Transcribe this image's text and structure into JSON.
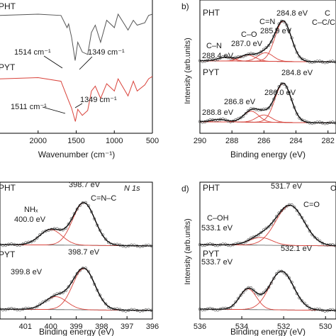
{
  "chart_data": [
    {
      "panel": "a",
      "type": "line",
      "panel_label": "",
      "xlabel": "Wavenumber (cm⁻¹)",
      "xlim": [
        2500,
        500
      ],
      "x_ticks": [
        "2000",
        "1500",
        "1000",
        "500"
      ],
      "series": [
        {
          "name": "PHT",
          "color": "#555555",
          "x": [
            2500,
            2000,
            1700,
            1620,
            1600,
            1560,
            1514,
            1480,
            1420,
            1349,
            1300,
            1250,
            1180,
            1100,
            1000,
            950,
            820,
            750,
            700,
            600,
            550,
            500
          ],
          "y": [
            0.92,
            0.93,
            0.92,
            0.82,
            0.85,
            0.74,
            0.55,
            0.7,
            0.62,
            0.6,
            0.78,
            0.84,
            0.7,
            0.88,
            0.82,
            0.93,
            0.8,
            0.88,
            0.84,
            0.86,
            0.92,
            0.93
          ]
        },
        {
          "name": "PYT",
          "color": "#d9423a",
          "x": [
            2500,
            2000,
            1700,
            1650,
            1600,
            1560,
            1511,
            1480,
            1420,
            1349,
            1300,
            1250,
            1180,
            1100,
            1000,
            950,
            820,
            750,
            700,
            600,
            550,
            500
          ],
          "y": [
            0.4,
            0.41,
            0.38,
            0.3,
            0.22,
            0.16,
            0.05,
            0.15,
            0.1,
            0.14,
            0.3,
            0.34,
            0.24,
            0.36,
            0.3,
            0.4,
            0.26,
            0.38,
            0.3,
            0.35,
            0.4,
            0.42
          ]
        }
      ],
      "annotations": [
        "1514 cm⁻¹",
        "1349 cm⁻¹",
        "1511 cm⁻¹",
        "1349 cm⁻¹"
      ],
      "series_labels": [
        "PHT",
        "PYT"
      ]
    },
    {
      "panel": "b",
      "type": "line",
      "panel_label": "b)",
      "xlabel": "Binding energy (eV)",
      "ylabel": "Intensity (arb.units)",
      "xlim": [
        290,
        281.5
      ],
      "x_ticks": [
        "290",
        "288",
        "286",
        "284",
        "282"
      ],
      "spectra": [
        {
          "name": "PHT",
          "offset": 0.55,
          "peaks": [
            {
              "center": 284.8,
              "height": 0.33,
              "width": 0.75
            },
            {
              "center": 285.9,
              "height": 0.07,
              "width": 0.7
            },
            {
              "center": 287.0,
              "height": 0.05,
              "width": 0.7
            },
            {
              "center": 288.4,
              "height": 0.03,
              "width": 0.7
            }
          ]
        },
        {
          "name": "PYT",
          "offset": 0.05,
          "peaks": [
            {
              "center": 284.8,
              "height": 0.32,
              "width": 0.75
            },
            {
              "center": 286.0,
              "height": 0.06,
              "width": 0.7
            },
            {
              "center": 286.8,
              "height": 0.09,
              "width": 0.7
            },
            {
              "center": 288.8,
              "height": 0.02,
              "width": 0.7
            }
          ]
        }
      ],
      "annotations": [
        "PHT",
        "C–C/C",
        "C",
        "C=N",
        "284.8 eV",
        "285.9 eV",
        "C–O",
        "287.0 eV",
        "C–N",
        "288.4 eV",
        "PYT",
        "284.8 eV",
        "286.0 eV",
        "286.8 eV",
        "288.8 eV"
      ]
    },
    {
      "panel": "c",
      "type": "line",
      "panel_label": "",
      "xlabel": "Binding energy (eV)",
      "xlim": [
        402,
        396
      ],
      "x_ticks": [
        "401",
        "400",
        "399",
        "398",
        "397",
        "396"
      ],
      "spectra": [
        {
          "name": "PHT",
          "offset": 0.55,
          "peaks": [
            {
              "center": 398.7,
              "height": 0.33,
              "width": 0.65
            },
            {
              "center": 400.0,
              "height": 0.12,
              "width": 0.65
            }
          ]
        },
        {
          "name": "PYT",
          "offset": 0.05,
          "peaks": [
            {
              "center": 398.7,
              "height": 0.32,
              "width": 0.65
            },
            {
              "center": 399.8,
              "height": 0.1,
              "width": 0.65
            }
          ]
        }
      ],
      "annotations": [
        "PHT",
        "N 1s",
        "398.7 eV",
        "C=N–C",
        "NHₓ",
        "400.0 eV",
        "PYT",
        "398.7 eV",
        "399.8 eV"
      ]
    },
    {
      "panel": "d",
      "type": "line",
      "panel_label": "d)",
      "xlabel": "Binding energy (eV)",
      "ylabel": "Intensity (arb.units)",
      "xlim": [
        536,
        529.5
      ],
      "x_ticks": [
        "536",
        "534",
        "532",
        "530"
      ],
      "spectra": [
        {
          "name": "PHT",
          "offset": 0.55,
          "peaks": [
            {
              "center": 531.7,
              "height": 0.31,
              "width": 1.0
            },
            {
              "center": 533.1,
              "height": 0.06,
              "width": 0.8
            }
          ]
        },
        {
          "name": "PYT",
          "offset": 0.05,
          "peaks": [
            {
              "center": 532.1,
              "height": 0.3,
              "width": 0.85
            },
            {
              "center": 533.7,
              "height": 0.16,
              "width": 0.6
            }
          ]
        }
      ],
      "annotations": [
        "PHT",
        "O",
        "531.7 eV",
        "C=O",
        "C–OH",
        "533.1 eV",
        "PYT",
        "532.1 eV",
        "533.7 eV"
      ]
    }
  ]
}
